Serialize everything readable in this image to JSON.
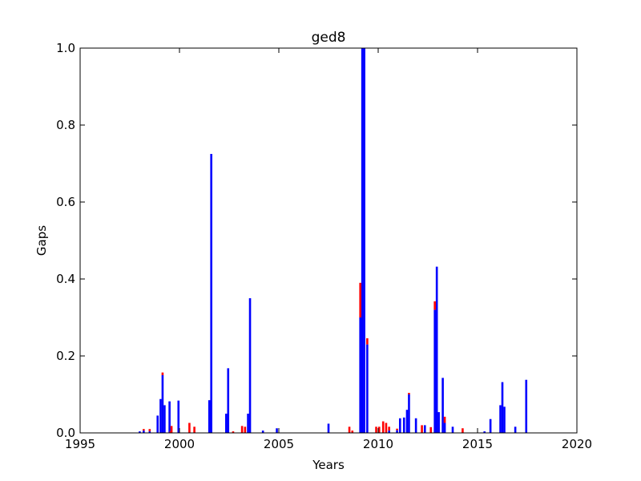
{
  "chart_data": {
    "type": "bar",
    "title": "ged8",
    "xlabel": "Years",
    "ylabel": "Gaps",
    "xlim": [
      1995,
      2020
    ],
    "ylim": [
      0,
      1.0
    ],
    "xticks": [
      1995,
      2000,
      2005,
      2010,
      2015,
      2020
    ],
    "xtick_labels": [
      "1995",
      "2000",
      "2005",
      "2010",
      "2015",
      "2020"
    ],
    "yticks": [
      0,
      0.2,
      0.4,
      0.6,
      0.8,
      1.0
    ],
    "ytick_labels": [
      "0.0",
      "0.2",
      "0.4",
      "0.6",
      "0.8",
      "1.0"
    ],
    "grid": false,
    "stacked": true,
    "series": [
      {
        "color": "#0000ff",
        "points": [
          [
            1998.0,
            0.004
          ],
          [
            1998.2,
            0.006
          ],
          [
            1998.5,
            0.004
          ],
          [
            1998.9,
            0.045
          ],
          [
            1999.05,
            0.088
          ],
          [
            1999.15,
            0.15
          ],
          [
            1999.25,
            0.072
          ],
          [
            1999.5,
            0.082
          ],
          [
            1999.95,
            0.084
          ],
          [
            2001.5,
            0.085
          ],
          [
            2001.6,
            0.725
          ],
          [
            2002.35,
            0.05
          ],
          [
            2002.45,
            0.168
          ],
          [
            2003.45,
            0.05
          ],
          [
            2003.55,
            0.35
          ],
          [
            2004.2,
            0.006
          ],
          [
            2004.9,
            0.012
          ],
          [
            2007.5,
            0.024
          ],
          [
            2009.1,
            0.3
          ],
          [
            2009.2,
            1.0
          ],
          [
            2009.3,
            1.0
          ],
          [
            2009.45,
            0.23
          ],
          [
            2010.55,
            0.006
          ],
          [
            2010.95,
            0.007
          ],
          [
            2011.1,
            0.038
          ],
          [
            2011.3,
            0.04
          ],
          [
            2011.45,
            0.06
          ],
          [
            2011.55,
            0.1
          ],
          [
            2011.9,
            0.038
          ],
          [
            2012.35,
            0.02
          ],
          [
            2012.85,
            0.32
          ],
          [
            2012.95,
            0.432
          ],
          [
            2013.05,
            0.054
          ],
          [
            2013.25,
            0.143
          ],
          [
            2013.35,
            0.026
          ],
          [
            2013.75,
            0.016
          ],
          [
            2015.35,
            0.004
          ],
          [
            2015.65,
            0.036
          ],
          [
            2016.15,
            0.072
          ],
          [
            2016.25,
            0.132
          ],
          [
            2016.35,
            0.068
          ],
          [
            2016.9,
            0.016
          ],
          [
            2017.45,
            0.138
          ]
        ]
      },
      {
        "color": "#ff0000",
        "points": [
          [
            1998.2,
            0.004
          ],
          [
            1998.5,
            0.006
          ],
          [
            1999.15,
            0.007
          ],
          [
            1999.55,
            0.004
          ],
          [
            1999.6,
            0.018
          ],
          [
            2000.5,
            0.026
          ],
          [
            2000.75,
            0.016
          ],
          [
            2002.7,
            0.004
          ],
          [
            2003.15,
            0.018
          ],
          [
            2003.3,
            0.016
          ],
          [
            2008.55,
            0.016
          ],
          [
            2008.7,
            0.006
          ],
          [
            2009.1,
            0.09
          ],
          [
            2009.45,
            0.016
          ],
          [
            2009.9,
            0.016
          ],
          [
            2010.05,
            0.016
          ],
          [
            2010.25,
            0.03
          ],
          [
            2010.4,
            0.026
          ],
          [
            2010.55,
            0.01
          ],
          [
            2010.95,
            0.004
          ],
          [
            2011.55,
            0.004
          ],
          [
            2012.2,
            0.02
          ],
          [
            2012.65,
            0.015
          ],
          [
            2012.85,
            0.022
          ],
          [
            2013.35,
            0.016
          ],
          [
            2014.25,
            0.012
          ]
        ]
      }
    ]
  }
}
